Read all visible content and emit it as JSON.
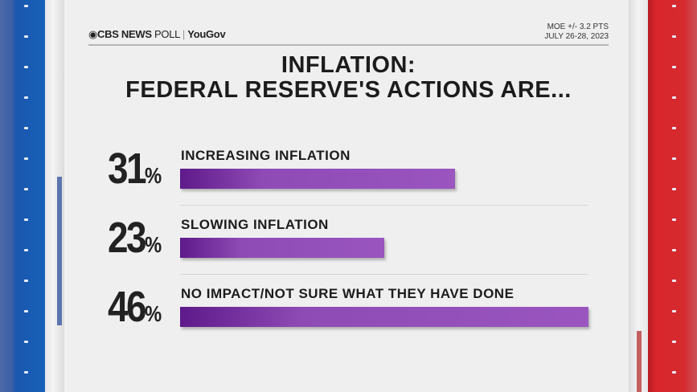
{
  "header": {
    "brand": "CBS NEWS",
    "poll": "POLL",
    "partner": "YouGov",
    "moe": "MOE +/- 3.2 PTS",
    "dates": "JULY 26-28, 2023"
  },
  "chart_data": {
    "type": "bar",
    "title": "INFLATION: FEDERAL RESERVE'S ACTIONS ARE...",
    "title_lines": [
      "INFLATION:",
      "FEDERAL RESERVE'S ACTIONS ARE..."
    ],
    "categories": [
      "INCREASING INFLATION",
      "SLOWING INFLATION",
      "NO IMPACT/NOT SURE WHAT THEY HAVE DONE"
    ],
    "values": [
      31,
      23,
      46
    ],
    "value_labels": [
      "31",
      "23",
      "46"
    ],
    "unit": "%",
    "xlim": [
      0,
      46
    ],
    "bar_color": "#8e4bb5",
    "orientation": "horizontal"
  },
  "colors": {
    "left_stripe": "#1860b8",
    "right_stripe": "#d52a2e",
    "background": "#efefef"
  }
}
